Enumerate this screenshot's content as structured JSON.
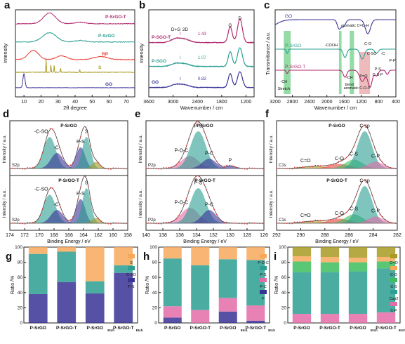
{
  "colors": {
    "navy": "#3a3396",
    "teal": "#2b9f92",
    "red": "#e8403a",
    "olive": "#a89a22",
    "magenta": "#b02a6f",
    "green": "#3dbd5c",
    "pink": "#e46ca8",
    "gray": "#9a9a9a",
    "peak_fill": "#e69e9e"
  },
  "chart_data": [
    {
      "type": "line",
      "letter": "a",
      "xlabel": "2θ degree",
      "ylabel": "Intensity",
      "x_ticks": [
        "10",
        "20",
        "30",
        "40",
        "50",
        "60",
        "70"
      ],
      "xlim": [
        5,
        75
      ],
      "series": [
        {
          "name": "GO",
          "peaks": [
            {
              "x": 10,
              "h": 0.9,
              "w": 0.6
            }
          ],
          "noise": 0.02,
          "baseline": 0.05
        },
        {
          "name": "S",
          "peaks": [
            {
              "x": 23,
              "h": 0.8,
              "w": 0.15
            },
            {
              "x": 25.8,
              "h": 0.5,
              "w": 0.15
            },
            {
              "x": 27.7,
              "h": 0.45,
              "w": 0.15
            },
            {
              "x": 31.5,
              "h": 0.25,
              "w": 0.15
            },
            {
              "x": 42.7,
              "h": 0.2,
              "w": 0.15
            }
          ],
          "noise": 0.04,
          "baseline": 0.05
        },
        {
          "name": "RP",
          "peaks": [
            {
              "x": 15.5,
              "h": 0.6,
              "w": 3
            },
            {
              "x": 32,
              "h": 0.25,
              "w": 3
            },
            {
              "x": 55,
              "h": 0.2,
              "w": 4
            }
          ],
          "noise": 0.04,
          "baseline": 0.05
        },
        {
          "name": "P-SrGO",
          "peaks": [
            {
              "x": 25,
              "h": 0.6,
              "w": 4
            },
            {
              "x": 43,
              "h": 0.1,
              "w": 3
            }
          ],
          "noise": 0.04,
          "baseline": 0.1
        },
        {
          "name": "P-SrGO-T",
          "peaks": [
            {
              "x": 25,
              "h": 0.7,
              "w": 3.5
            },
            {
              "x": 43,
              "h": 0.1,
              "w": 3
            }
          ],
          "noise": 0.04,
          "baseline": 0.1
        }
      ]
    },
    {
      "type": "line",
      "letter": "b",
      "xlabel": "Wavenumber / cm",
      "ylabel": "Intensity",
      "x_ticks": [
        "3600",
        "3000",
        "2400",
        "1800",
        "1200"
      ],
      "xlim": [
        3600,
        1000
      ],
      "peak_labels": [
        "D+G",
        "2D",
        "G",
        "D"
      ],
      "series": [
        {
          "name": "GO",
          "ratio": "I",
          "ratio_value": "0.82",
          "peaks": [
            {
              "x": 1350,
              "h": 0.8,
              "w": 60
            },
            {
              "x": 1590,
              "h": 0.7,
              "w": 50
            },
            {
              "x": 2700,
              "h": 0.12,
              "w": 120
            },
            {
              "x": 2930,
              "h": 0.15,
              "w": 120
            }
          ]
        },
        {
          "name": "P-SGO",
          "ratio": "I",
          "ratio_value": "1.07",
          "peaks": [
            {
              "x": 1350,
              "h": 0.95,
              "w": 60
            },
            {
              "x": 1590,
              "h": 0.75,
              "w": 50
            },
            {
              "x": 2700,
              "h": 0.12,
              "w": 120
            },
            {
              "x": 2930,
              "h": 0.15,
              "w": 120
            }
          ]
        },
        {
          "name": "P-SGO-T",
          "ratio": "I",
          "ratio_value": "1.43",
          "peaks": [
            {
              "x": 1350,
              "h": 1.2,
              "w": 60
            },
            {
              "x": 1590,
              "h": 0.8,
              "w": 50
            },
            {
              "x": 2700,
              "h": 0.15,
              "w": 120
            },
            {
              "x": 2930,
              "h": 0.2,
              "w": 120
            }
          ]
        }
      ]
    },
    {
      "type": "line",
      "letter": "c",
      "xlabel": "Wavenumber / cm",
      "ylabel": "Transmittance / a.u.",
      "x_ticks": [
        "3200",
        "2800",
        "2400",
        "2000",
        "1600",
        "1200",
        "800",
        "400"
      ],
      "xlim": [
        3200,
        400
      ],
      "annotations": [
        "aromatic C=C-H",
        "-COOH",
        "C-O",
        "C-SO",
        "-C",
        "P-P",
        "-CH",
        "Stretch",
        "-CH",
        "bend",
        "P=O",
        "P-S",
        "C-S-P",
        "aromatic C-O-P"
      ],
      "series": [
        {
          "name": "GO",
          "dips": [
            {
              "x": 3400,
              "d": 0.3,
              "w": 200
            },
            {
              "x": 1720,
              "d": 0.3,
              "w": 40
            },
            {
              "x": 1620,
              "d": 0.25,
              "w": 50
            },
            {
              "x": 1050,
              "d": 0.5,
              "w": 60
            }
          ]
        },
        {
          "name": "P-SrGO",
          "dips": [
            {
              "x": 2920,
              "d": 0.15,
              "w": 20
            },
            {
              "x": 1580,
              "d": 0.3,
              "w": 40
            },
            {
              "x": 1180,
              "d": 0.35,
              "w": 50
            },
            {
              "x": 850,
              "d": 0.15,
              "w": 40
            }
          ]
        },
        {
          "name": "P-SrGO-T",
          "dips": [
            {
              "x": 2920,
              "d": 0.12,
              "w": 20
            },
            {
              "x": 1580,
              "d": 0.25,
              "w": 40
            },
            {
              "x": 1180,
              "d": 0.4,
              "w": 60
            },
            {
              "x": 1000,
              "d": 0.6,
              "w": 50
            },
            {
              "x": 850,
              "d": 0.2,
              "w": 40
            },
            {
              "x": 600,
              "d": 0.15,
              "w": 30
            }
          ]
        }
      ]
    },
    {
      "type": "line",
      "letter": "d",
      "xlabel": "Binding Energy / eV",
      "ylabel": "Intensity / a.u.",
      "x_ticks": [
        "174",
        "172",
        "170",
        "168",
        "166",
        "164",
        "162",
        "160",
        "158"
      ],
      "xlim": [
        174,
        158
      ],
      "core": "S2p",
      "panels": [
        {
          "sample": "P-SrGO",
          "labels": [
            "-C-SO",
            "-C-",
            "P-S",
            "S"
          ],
          "components": [
            {
              "x": 168.6,
              "h": 0.72,
              "w": 0.8,
              "c": "teal"
            },
            {
              "x": 167.6,
              "h": 0.35,
              "w": 0.8,
              "c": "navy"
            },
            {
              "x": 164.4,
              "h": 0.48,
              "w": 0.6,
              "c": "navy"
            },
            {
              "x": 163.6,
              "h": 0.72,
              "w": 0.55,
              "c": "teal"
            },
            {
              "x": 162.3,
              "h": 0.15,
              "w": 0.5,
              "c": "olive"
            }
          ]
        },
        {
          "sample": "P-SrGO-T",
          "labels": [
            "-C-SO",
            "-C-",
            "P-S",
            "S"
          ],
          "components": [
            {
              "x": 168.6,
              "h": 0.65,
              "w": 0.8,
              "c": "teal"
            },
            {
              "x": 167.6,
              "h": 0.3,
              "w": 0.8,
              "c": "navy"
            },
            {
              "x": 164.4,
              "h": 0.55,
              "w": 0.6,
              "c": "navy"
            },
            {
              "x": 163.6,
              "h": 0.8,
              "w": 0.55,
              "c": "teal"
            },
            {
              "x": 162.3,
              "h": 0.12,
              "w": 0.5,
              "c": "olive"
            }
          ]
        }
      ]
    },
    {
      "type": "line",
      "letter": "e",
      "xlabel": "Binding Energy / eV",
      "ylabel": "Intensity / a.u.",
      "x_ticks": [
        "140",
        "138",
        "136",
        "134",
        "132",
        "130",
        "128",
        "126"
      ],
      "xlim": [
        140,
        126
      ],
      "core": "P2p",
      "panels": [
        {
          "sample": "P-SrGO",
          "labels": [
            "P-O-C",
            "P-S",
            "P-C",
            "P"
          ],
          "components": [
            {
              "x": 134.8,
              "h": 0.28,
              "w": 1.0,
              "c": "pink"
            },
            {
              "x": 133.8,
              "h": 0.85,
              "w": 0.9,
              "c": "teal"
            },
            {
              "x": 132.5,
              "h": 0.22,
              "w": 0.8,
              "c": "navy"
            },
            {
              "x": 130.0,
              "h": 0.06,
              "w": 0.6,
              "c": "navy"
            }
          ]
        },
        {
          "sample": "P-SrGO-T",
          "labels": [
            "P-O-C",
            "P-S",
            "P-C"
          ],
          "components": [
            {
              "x": 134.8,
              "h": 0.35,
              "w": 1.0,
              "c": "pink"
            },
            {
              "x": 133.8,
              "h": 0.8,
              "w": 0.9,
              "c": "teal"
            },
            {
              "x": 132.5,
              "h": 0.3,
              "w": 0.8,
              "c": "navy"
            }
          ]
        }
      ]
    },
    {
      "type": "line",
      "letter": "f",
      "xlabel": "Binding Energy / eV",
      "ylabel": "Intensity / a.u.",
      "x_ticks": [
        "292",
        "290",
        "288",
        "286",
        "284",
        "282"
      ],
      "xlim": [
        292,
        282
      ],
      "core": "C1s",
      "panels": [
        {
          "sample": "P-SrGO",
          "labels": [
            "C=O",
            "C-O",
            "C-S",
            "C sp",
            "C-P"
          ],
          "components": [
            {
              "x": 288.9,
              "h": 0.05,
              "w": 0.9,
              "c": "olive"
            },
            {
              "x": 286.8,
              "h": 0.1,
              "w": 0.8,
              "c": "red"
            },
            {
              "x": 285.6,
              "h": 0.2,
              "w": 0.7,
              "c": "green"
            },
            {
              "x": 284.7,
              "h": 0.85,
              "w": 0.6,
              "c": "teal"
            },
            {
              "x": 283.8,
              "h": 0.15,
              "w": 0.6,
              "c": "pink"
            }
          ]
        },
        {
          "sample": "P-SrGO-T",
          "labels": [
            "C=O",
            "C-O",
            "C-S",
            "C sp",
            "C-P"
          ],
          "components": [
            {
              "x": 288.9,
              "h": 0.05,
              "w": 0.9,
              "c": "olive"
            },
            {
              "x": 286.8,
              "h": 0.1,
              "w": 0.8,
              "c": "red"
            },
            {
              "x": 285.6,
              "h": 0.2,
              "w": 0.7,
              "c": "green"
            },
            {
              "x": 284.7,
              "h": 0.85,
              "w": 0.6,
              "c": "teal"
            },
            {
              "x": 283.8,
              "h": 0.15,
              "w": 0.6,
              "c": "pink"
            }
          ]
        }
      ]
    },
    {
      "type": "bar",
      "stacked": true,
      "letter": "g",
      "ylabel": "Ratio /%",
      "ylim": [
        0,
        100
      ],
      "y_ticks": [
        "0",
        "20",
        "40",
        "60",
        "80",
        "100"
      ],
      "categories": [
        "P-SrGO",
        "P-SrGO-T",
        "P-SrGO",
        "P-SrGO-T"
      ],
      "category_subscripts": [
        "",
        "",
        "Etch",
        "Etch"
      ],
      "series": [
        {
          "name": "P-S",
          "color": "navy",
          "values": [
            38,
            54,
            39,
            66
          ]
        },
        {
          "name": "C-SO",
          "color": "teal",
          "values": [
            53,
            40,
            16,
            10
          ]
        },
        {
          "name": "S",
          "color": "orange",
          "values": [
            9,
            6,
            45,
            24
          ]
        }
      ]
    },
    {
      "type": "bar",
      "stacked": true,
      "letter": "h",
      "ylabel": "Ratio /%",
      "ylim": [
        0,
        100
      ],
      "y_ticks": [
        "0",
        "20",
        "40",
        "60",
        "80",
        "100"
      ],
      "categories": [
        "P-SrGO",
        "P-SrGO-T",
        "P-SrGO",
        "P-SrGO-T"
      ],
      "category_subscripts": [
        "",
        "",
        "Etch",
        "Etch"
      ],
      "series": [
        {
          "name": "P",
          "color": "navy",
          "values": [
            7,
            0,
            15,
            3
          ]
        },
        {
          "name": "P-C",
          "color": "pink",
          "values": [
            15,
            17,
            18,
            20
          ]
        },
        {
          "name": "P-S",
          "color": "teal",
          "values": [
            63,
            59,
            51,
            60
          ]
        },
        {
          "name": "P-O-C",
          "color": "orange",
          "values": [
            15,
            24,
            16,
            17
          ]
        }
      ]
    },
    {
      "type": "bar",
      "stacked": true,
      "letter": "i",
      "ylabel": "Ratio /%",
      "ylim": [
        0,
        100
      ],
      "y_ticks": [
        "0",
        "20",
        "40",
        "60",
        "80",
        "100"
      ],
      "categories": [
        "P-SrGO",
        "P-SrGO-T",
        "P-SrGO",
        "P-SrGO-T"
      ],
      "category_subscripts": [
        "",
        "",
        "Etch",
        "Etch"
      ],
      "series": [
        {
          "name": "C-P",
          "color": "pink",
          "values": [
            12,
            12,
            12,
            14
          ]
        },
        {
          "name": "Csp2",
          "color": "teal",
          "values": [
            55,
            55,
            56,
            58
          ]
        },
        {
          "name": "C-S",
          "color": "green",
          "values": [
            14,
            13,
            12,
            9
          ]
        },
        {
          "name": "C-O",
          "color": "orange",
          "values": [
            7,
            7,
            6,
            6
          ]
        },
        {
          "name": "C=O",
          "color": "olive",
          "values": [
            12,
            13,
            14,
            13
          ]
        }
      ]
    }
  ]
}
